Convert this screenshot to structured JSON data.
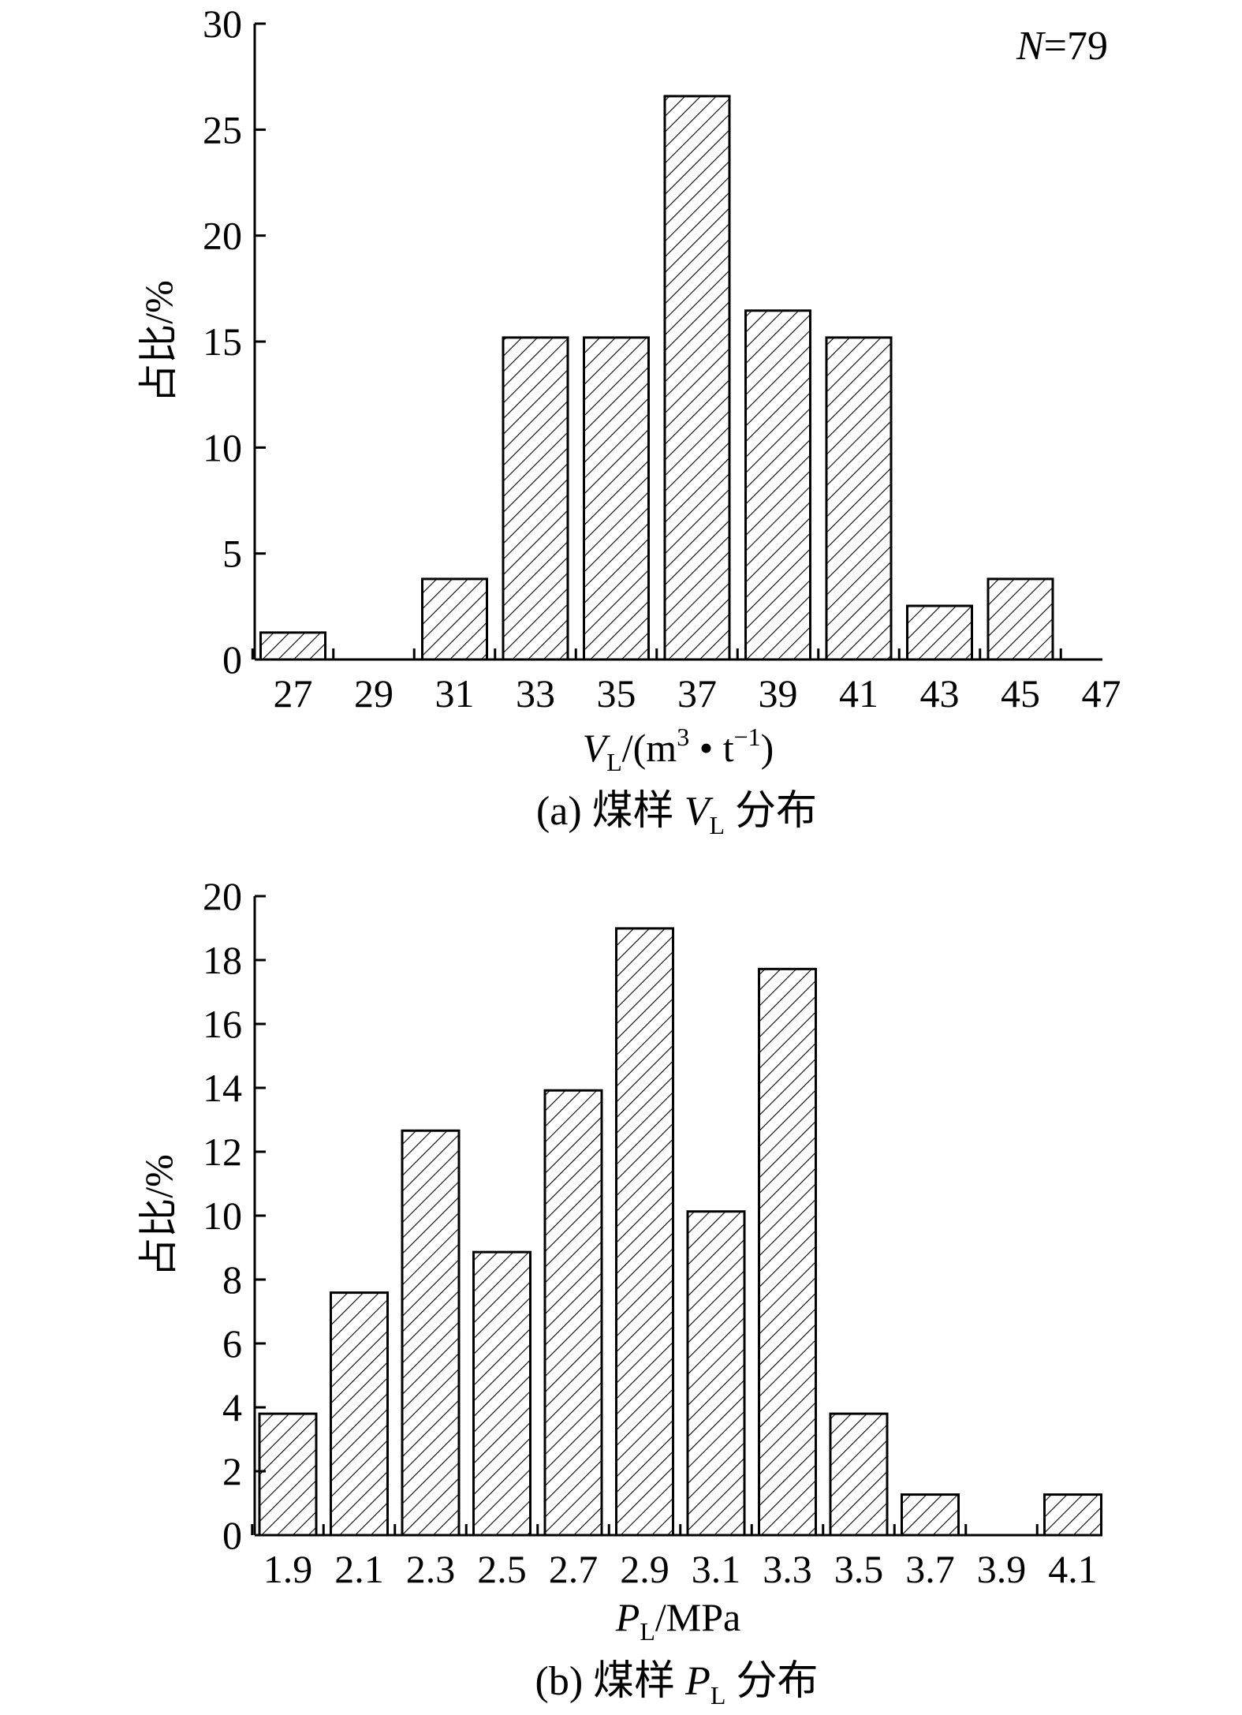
{
  "chart_data": [
    {
      "type": "bar",
      "id": "a",
      "categories": [
        "27",
        "29",
        "31",
        "33",
        "35",
        "37",
        "39",
        "41",
        "43",
        "45",
        "47"
      ],
      "values": [
        1.27,
        0,
        3.8,
        15.19,
        15.19,
        26.58,
        16.46,
        15.19,
        2.53,
        3.8,
        null
      ],
      "ylim": [
        0,
        30
      ],
      "yticks": [
        "0",
        "5",
        "10",
        "15",
        "20",
        "25",
        "30"
      ],
      "ylabel": "占比/%",
      "xlabel": {
        "main": "V",
        "sub": "L",
        "rest1": "/(m",
        "sup1": "3",
        "rest2": " • t",
        "sup2": "−1",
        "rest3": ")"
      },
      "annotation": {
        "italic": "N",
        "rest": "=79"
      },
      "caption": {
        "prefix": "(a) 煤样 ",
        "var": "V",
        "sub": "L",
        "suffix": " 分布"
      },
      "fill_pattern": "diagonal-hatch",
      "grid": false,
      "color": "#000000"
    },
    {
      "type": "bar",
      "id": "b",
      "categories": [
        "1.9",
        "2.1",
        "2.3",
        "2.5",
        "2.7",
        "2.9",
        "3.1",
        "3.3",
        "3.5",
        "3.7",
        "3.9",
        "4.1"
      ],
      "values": [
        3.8,
        7.59,
        12.66,
        8.86,
        13.92,
        18.99,
        10.13,
        17.72,
        3.8,
        1.27,
        0,
        1.27
      ],
      "ylim": [
        0,
        20
      ],
      "yticks": [
        "0",
        "2",
        "4",
        "6",
        "8",
        "10",
        "12",
        "14",
        "16",
        "18",
        "20"
      ],
      "ylabel": "占比/%",
      "xlabel": {
        "main": "P",
        "sub": "L",
        "rest": "/MPa"
      },
      "caption": {
        "prefix": "(b) 煤样 ",
        "var": "P",
        "sub": "L",
        "suffix": " 分布"
      },
      "fill_pattern": "diagonal-hatch",
      "grid": false,
      "color": "#000000"
    }
  ]
}
